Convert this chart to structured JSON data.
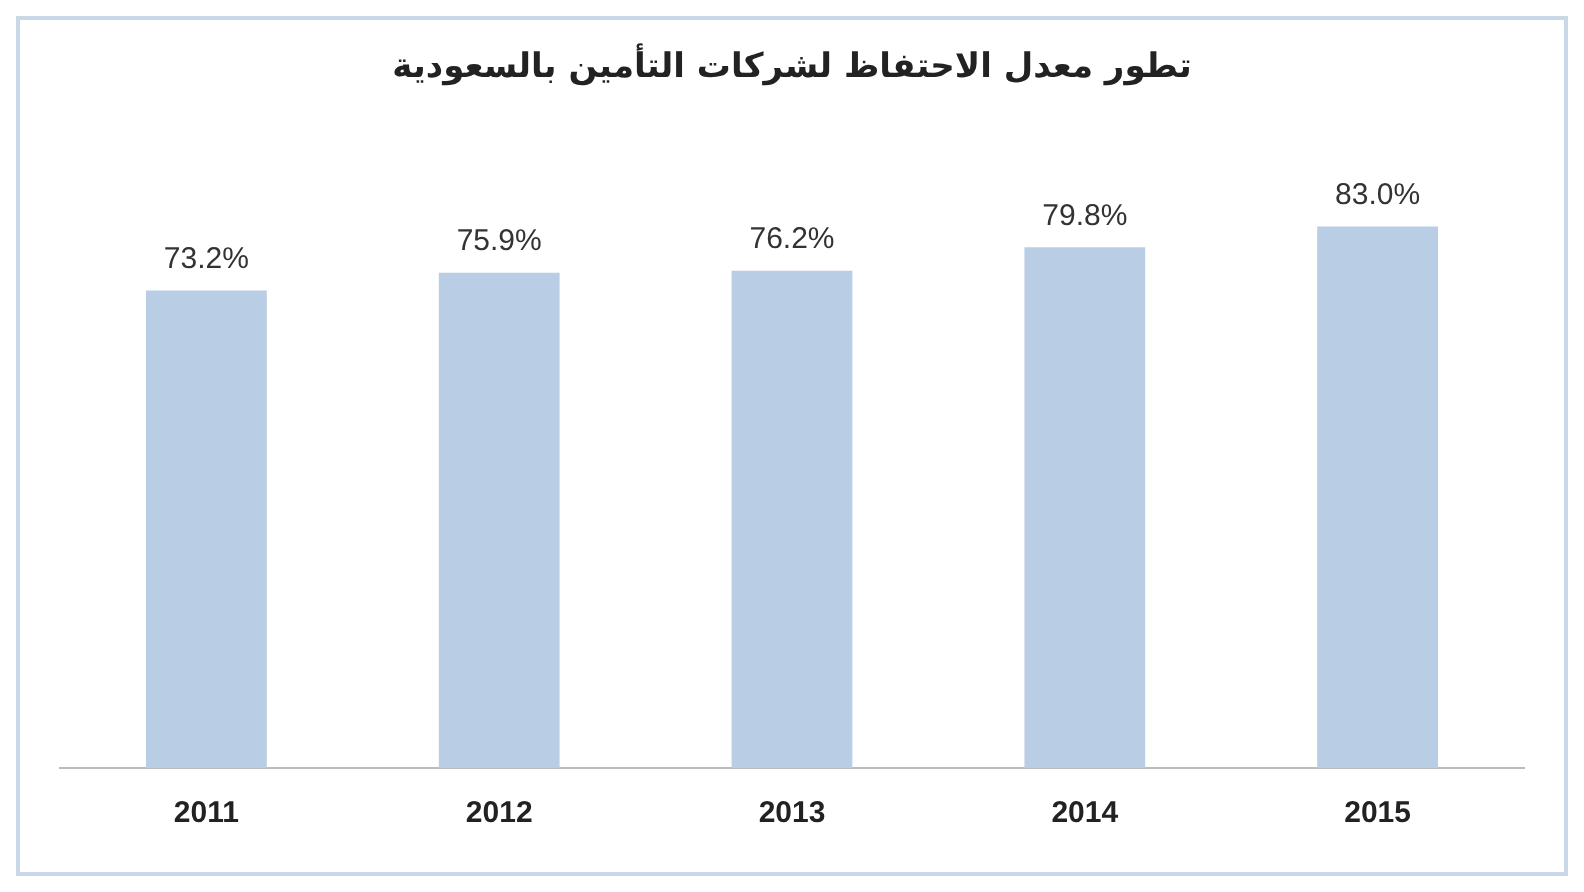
{
  "chart_data": {
    "type": "bar",
    "title": "تطور معدل الاحتفاظ لشركات التأمين بالسعودية",
    "categories": [
      "2011",
      "2012",
      "2013",
      "2014",
      "2015"
    ],
    "values": [
      73.2,
      75.9,
      76.2,
      79.8,
      83.0
    ],
    "value_labels": [
      "73.2%",
      "75.9%",
      "76.2%",
      "79.8%",
      "83.0%"
    ],
    "color": "#b9cde5"
  }
}
